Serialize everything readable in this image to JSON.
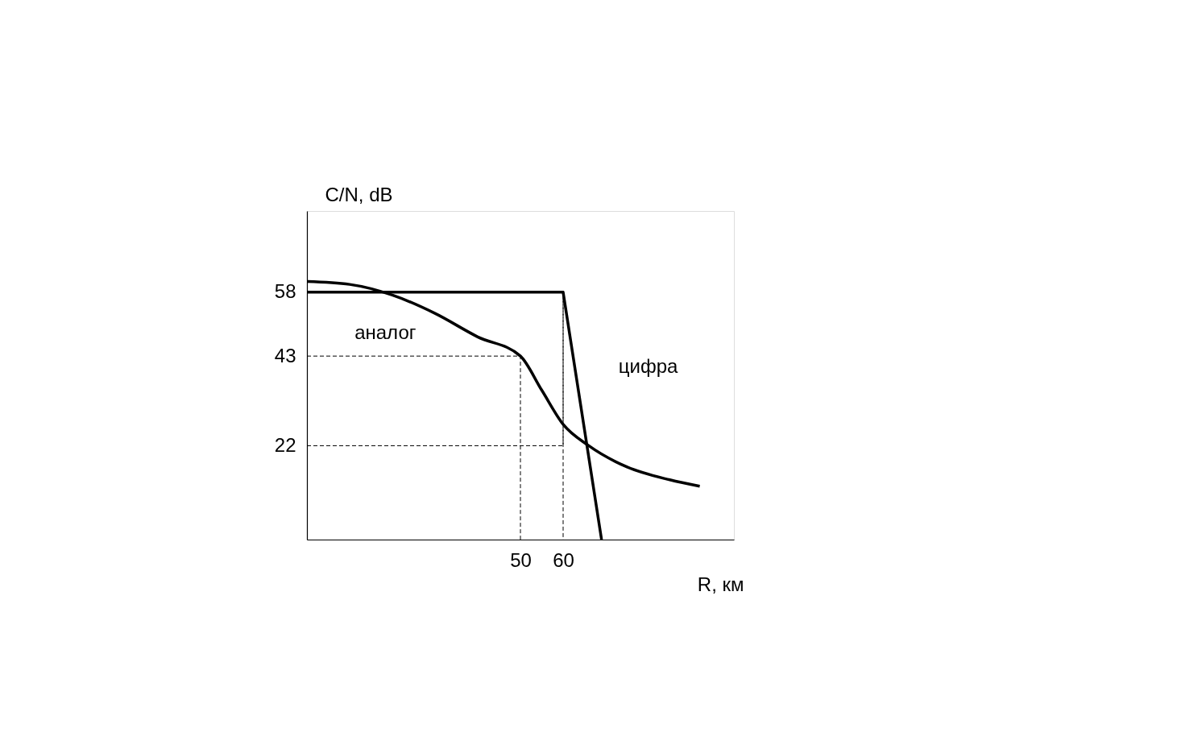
{
  "chart_data": {
    "type": "line",
    "xlabel": "R, км",
    "ylabel": "C/N, dB",
    "xlim": [
      0,
      100
    ],
    "ylim": [
      0,
      77
    ],
    "xticks": [
      50,
      60
    ],
    "yticks": [
      22,
      43,
      58
    ],
    "grid": false,
    "series": [
      {
        "name": "аналог",
        "color": "#000000",
        "x": [
          0,
          10,
          20,
          30,
          40,
          50,
          55,
          60,
          66,
          75,
          85,
          92
        ],
        "values": [
          60.5,
          59.8,
          57.3,
          53,
          47.5,
          43,
          35,
          27,
          22,
          17,
          14,
          12.5
        ]
      },
      {
        "name": "цифра",
        "color": "#000000",
        "x": [
          0,
          60,
          69
        ],
        "values": [
          58,
          58,
          0
        ]
      },
      {
        "color": "#000000",
        "line_style": "dashed",
        "x": [
          0,
          50,
          50
        ],
        "values": [
          43,
          43,
          0
        ]
      },
      {
        "color": "#000000",
        "line_style": "dashed",
        "x": [
          0,
          60,
          60,
          60
        ],
        "values": [
          22,
          22,
          58,
          0
        ]
      }
    ]
  }
}
